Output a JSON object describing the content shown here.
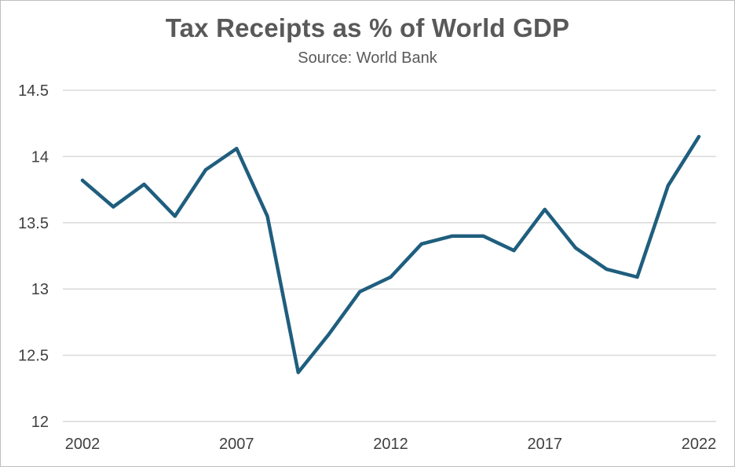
{
  "chart_data": {
    "type": "line",
    "title": "Tax Receipts as % of World GDP",
    "subtitle": "Source: World Bank",
    "xlabel": "",
    "ylabel": "",
    "ylim": [
      12,
      14.5
    ],
    "y_ticks": [
      "12",
      "12.5",
      "13",
      "13.5",
      "14",
      "14.5"
    ],
    "x_ticks": [
      "2002",
      "2007",
      "2012",
      "2017",
      "2022"
    ],
    "grid": true,
    "line_color": "#1f5e7e",
    "x": [
      2002,
      2003,
      2004,
      2005,
      2006,
      2007,
      2008,
      2009,
      2010,
      2011,
      2012,
      2013,
      2014,
      2015,
      2016,
      2017,
      2018,
      2019,
      2020,
      2021,
      2022
    ],
    "series": [
      {
        "values": [
          13.82,
          13.62,
          13.79,
          13.55,
          13.9,
          14.06,
          13.55,
          12.37,
          12.66,
          12.98,
          13.09,
          13.34,
          13.4,
          13.4,
          13.29,
          13.6,
          13.31,
          13.15,
          13.09,
          13.78,
          14.15
        ]
      }
    ]
  }
}
